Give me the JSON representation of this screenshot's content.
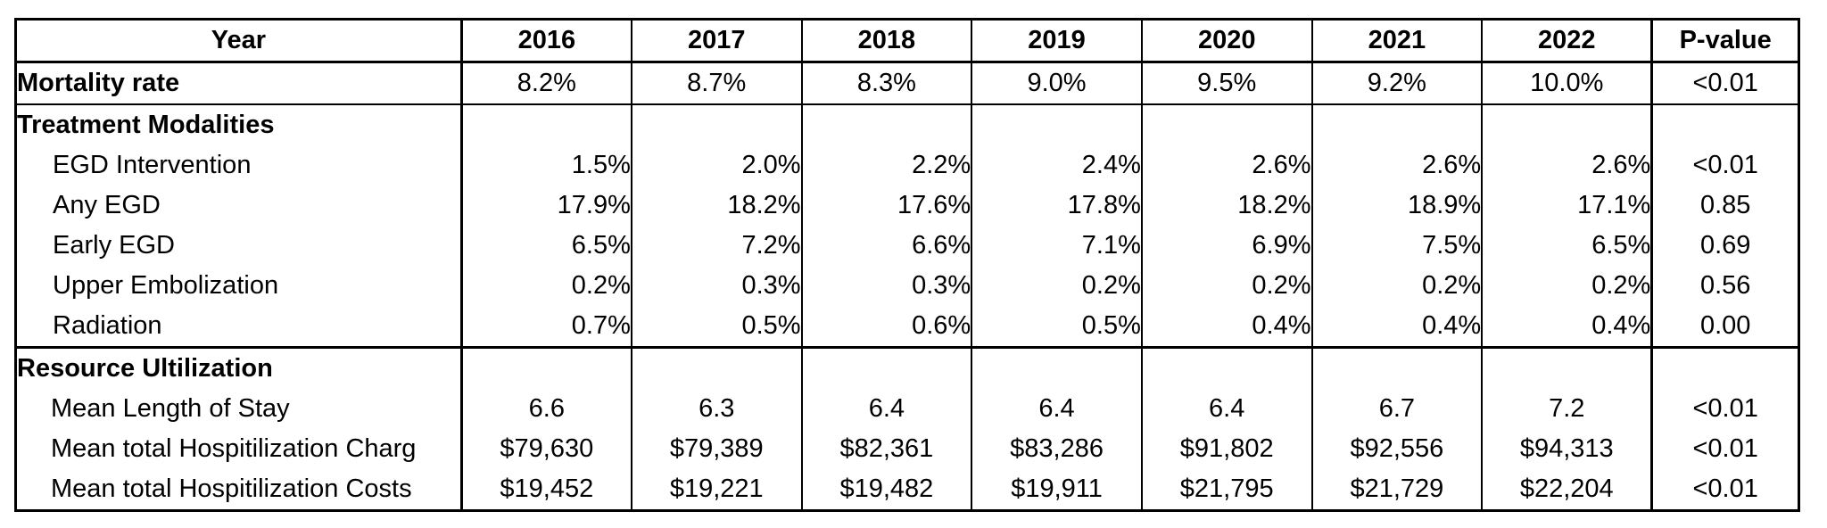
{
  "table": {
    "header": {
      "label": "Year",
      "years": [
        "2016",
        "2017",
        "2018",
        "2019",
        "2020",
        "2021",
        "2022"
      ],
      "pvalue": "P-value"
    },
    "mortality": {
      "label": "Mortality rate",
      "values": [
        "8.2%",
        "8.7%",
        "8.3%",
        "9.0%",
        "9.5%",
        "9.2%",
        "10.0%"
      ],
      "pvalue": "<0.01"
    },
    "treatment": {
      "section_label": "Treatment Modalities",
      "rows": [
        {
          "label": "EGD Intervention",
          "values": [
            "1.5%",
            "2.0%",
            "2.2%",
            "2.4%",
            "2.6%",
            "2.6%",
            "2.6%"
          ],
          "pvalue": "<0.01"
        },
        {
          "label": "Any EGD",
          "values": [
            "17.9%",
            "18.2%",
            "17.6%",
            "17.8%",
            "18.2%",
            "18.9%",
            "17.1%"
          ],
          "pvalue": "0.85"
        },
        {
          "label": "Early EGD",
          "values": [
            "6.5%",
            "7.2%",
            "6.6%",
            "7.1%",
            "6.9%",
            "7.5%",
            "6.5%"
          ],
          "pvalue": "0.69"
        },
        {
          "label": "Upper Embolization",
          "values": [
            "0.2%",
            "0.3%",
            "0.3%",
            "0.2%",
            "0.2%",
            "0.2%",
            "0.2%"
          ],
          "pvalue": "0.56"
        },
        {
          "label": "Radiation",
          "values": [
            "0.7%",
            "0.5%",
            "0.6%",
            "0.5%",
            "0.4%",
            "0.4%",
            "0.4%"
          ],
          "pvalue": "0.00"
        }
      ]
    },
    "resource": {
      "section_label": "Resource Ultilization",
      "rows": [
        {
          "label": "Mean Length of Stay",
          "values": [
            "6.6",
            "6.3",
            "6.4",
            "6.4",
            "6.4",
            "6.7",
            "7.2"
          ],
          "pvalue": "<0.01"
        },
        {
          "label": "Mean total Hospitilization Charg",
          "values": [
            "$79,630",
            "$79,389",
            "$82,361",
            "$83,286",
            "$91,802",
            "$92,556",
            "$94,313"
          ],
          "pvalue": "<0.01"
        },
        {
          "label": "Mean total Hospitilization Costs",
          "values": [
            "$19,452",
            "$19,221",
            "$19,482",
            "$19,911",
            "$21,795",
            "$21,729",
            "$22,204"
          ],
          "pvalue": "<0.01"
        }
      ]
    }
  }
}
